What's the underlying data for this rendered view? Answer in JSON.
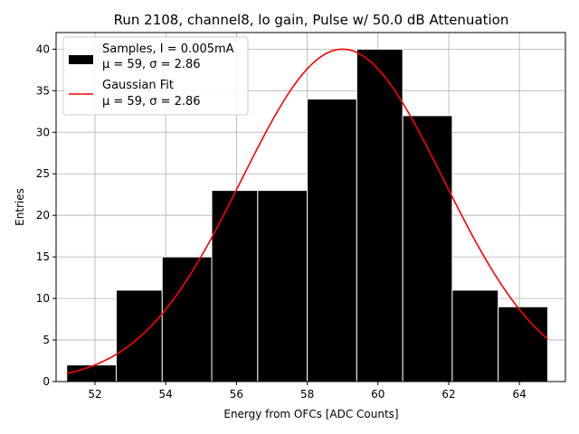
{
  "chart_data": {
    "type": "bar",
    "title": "Run 2108, channel8, lo gain, Pulse w/ 50.0 dB Attenuation",
    "xlabel": "Energy from OFCs [ADC Counts]",
    "ylabel": "Entries",
    "xlim": [
      50.9,
      65.3
    ],
    "ylim": [
      0,
      42
    ],
    "xticks": [
      52,
      54,
      56,
      58,
      60,
      62,
      64
    ],
    "yticks": [
      0,
      5,
      10,
      15,
      20,
      25,
      30,
      35,
      40
    ],
    "grid": true,
    "bin_edges": [
      51.2,
      52.6,
      53.9,
      55.3,
      56.6,
      58.0,
      59.4,
      60.7,
      62.1,
      63.4,
      64.8
    ],
    "values": [
      2,
      11,
      15,
      23,
      23,
      34,
      40,
      32,
      11,
      9
    ],
    "bar_color": "#000000",
    "bar_edge_color": "#ffffff",
    "fit": {
      "amplitude": 40,
      "mu": 59,
      "sigma": 2.86,
      "x_range": [
        51.2,
        64.8
      ],
      "color": "#ff0000"
    },
    "legend": {
      "position": "top-left",
      "entries": [
        {
          "label": "Samples, I = 0.005mA",
          "sublabel": "μ = 59, σ = 2.86",
          "kind": "patch",
          "color": "#000000"
        },
        {
          "label": "Gaussian Fit",
          "sublabel": "μ = 59, σ = 2.86",
          "kind": "line",
          "color": "#ff0000"
        }
      ]
    }
  }
}
